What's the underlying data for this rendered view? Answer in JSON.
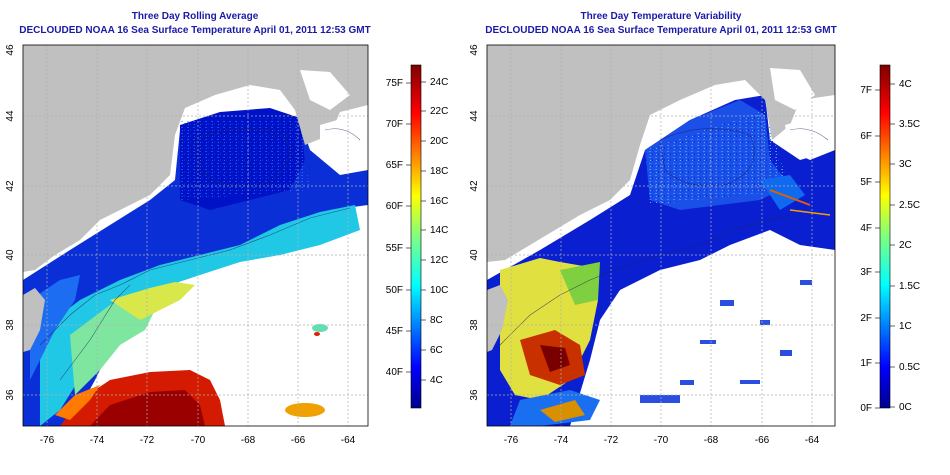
{
  "panels": [
    {
      "title": "Three Day Rolling Average",
      "subtitle": "DECLOUDED NOAA 16 Sea Surface Temperature April 01, 2011 12:53 GMT",
      "x_ticks": [
        "-76",
        "-74",
        "-72",
        "-70",
        "-68",
        "-66",
        "-64"
      ],
      "y_ticks": [
        "36",
        "38",
        "40",
        "42",
        "44",
        "46"
      ],
      "colorbar": {
        "fahrenheit_labels": [
          "75F",
          "70F",
          "65F",
          "60F",
          "55F",
          "50F",
          "45F",
          "40F"
        ],
        "celsius_labels": [
          "24C",
          "22C",
          "20C",
          "18C",
          "16C",
          "14C",
          "12C",
          "10C",
          "8C",
          "6C",
          "4C"
        ]
      }
    },
    {
      "title": "Three Day Temperature Variability",
      "subtitle": "DECLOUDED NOAA 16 Sea Surface Temperature April 01, 2011 12:53 GMT",
      "x_ticks": [
        "-76",
        "-74",
        "-72",
        "-70",
        "-68",
        "-66",
        "-64"
      ],
      "y_ticks": [
        "36",
        "38",
        "40",
        "42",
        "44",
        "46"
      ],
      "colorbar": {
        "fahrenheit_labels": [
          "7F",
          "6F",
          "5F",
          "4F",
          "3F",
          "2F",
          "1F",
          "0F"
        ],
        "celsius_labels": [
          "4C",
          "3.5C",
          "3C",
          "2.5C",
          "2C",
          "1.5C",
          "1C",
          "0.5C",
          "0C"
        ]
      }
    }
  ],
  "colors": {
    "title": "#1a1aa8",
    "land": "#c0c0c0",
    "grid": "#b0b0b0"
  }
}
